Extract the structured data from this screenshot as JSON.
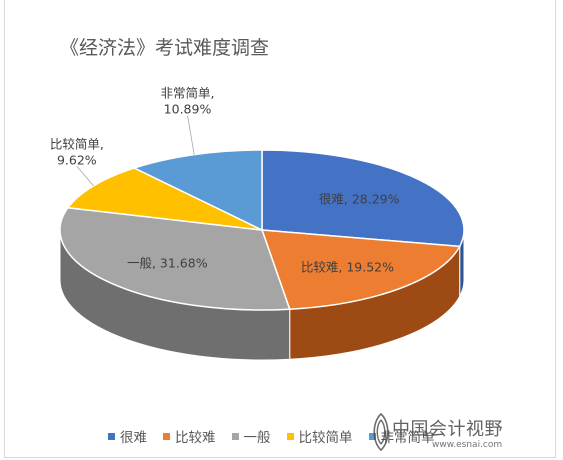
{
  "chart_data": {
    "type": "pie",
    "style": "3d",
    "title": "《经济法》考试难度调查",
    "slices": [
      {
        "name": "很难",
        "value": 28.29,
        "label_name": "很难",
        "label_value": "28.29%",
        "color": "#4472c4",
        "side": "#2f5597"
      },
      {
        "name": "比较难",
        "value": 19.52,
        "label_name": "比较难",
        "label_value": "19.52%",
        "color": "#ed7d31",
        "side": "#9e4a14"
      },
      {
        "name": "一般",
        "value": 31.68,
        "label_name": "一般",
        "label_value": "31.68%",
        "color": "#a5a5a5",
        "side": "#6f6f6f"
      },
      {
        "name": "比较简单",
        "value": 9.62,
        "label_name": "比较简单",
        "label_value": "9.62%",
        "color": "#ffc000",
        "side": "#b58800"
      },
      {
        "name": "非常简单",
        "value": 10.89,
        "label_name": "非常简单",
        "label_value": "10.89%",
        "color": "#5b9bd5",
        "side": "#3a6f9f"
      }
    ],
    "legend_position": "bottom"
  },
  "watermark": {
    "text": "中国会计视野",
    "url": "www.esnai.com"
  }
}
